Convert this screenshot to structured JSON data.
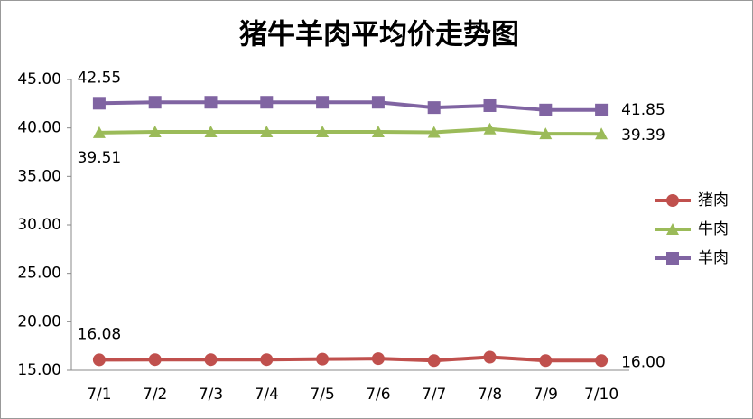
{
  "chart_data": {
    "type": "line",
    "title": "猪牛羊肉平均价走势图",
    "categories": [
      "7/1",
      "7/2",
      "7/3",
      "7/4",
      "7/5",
      "7/6",
      "7/7",
      "7/8",
      "7/9",
      "7/10"
    ],
    "series": [
      {
        "name": "猪肉",
        "color": "#c0504d",
        "marker": "circle",
        "values": [
          16.08,
          16.1,
          16.1,
          16.1,
          16.15,
          16.2,
          16.0,
          16.35,
          16.0,
          16.0
        ],
        "value_labels": [
          "16.08",
          null,
          null,
          null,
          null,
          null,
          null,
          null,
          null,
          "16.00"
        ]
      },
      {
        "name": "牛肉",
        "color": "#9bbb59",
        "marker": "triangle",
        "values": [
          39.51,
          39.6,
          39.6,
          39.6,
          39.6,
          39.6,
          39.55,
          39.9,
          39.4,
          39.39
        ],
        "value_labels": [
          "39.51",
          null,
          null,
          null,
          null,
          null,
          null,
          null,
          null,
          "39.39"
        ]
      },
      {
        "name": "羊肉",
        "color": "#8064a2",
        "marker": "square",
        "values": [
          42.55,
          42.65,
          42.65,
          42.65,
          42.65,
          42.65,
          42.1,
          42.3,
          41.85,
          41.85
        ],
        "value_labels": [
          "42.55",
          null,
          null,
          null,
          null,
          null,
          null,
          null,
          null,
          "41.85"
        ]
      }
    ],
    "ylim": [
      15,
      45
    ],
    "yticks": [
      {
        "value": 15,
        "label": "15.00"
      },
      {
        "value": 20,
        "label": "20.00"
      },
      {
        "value": 25,
        "label": "25.00"
      },
      {
        "value": 30,
        "label": "30.00"
      },
      {
        "value": 35,
        "label": "35.00"
      },
      {
        "value": 40,
        "label": "40.00"
      },
      {
        "value": 45,
        "label": "45.00"
      }
    ],
    "grid": false,
    "legend": "right"
  }
}
